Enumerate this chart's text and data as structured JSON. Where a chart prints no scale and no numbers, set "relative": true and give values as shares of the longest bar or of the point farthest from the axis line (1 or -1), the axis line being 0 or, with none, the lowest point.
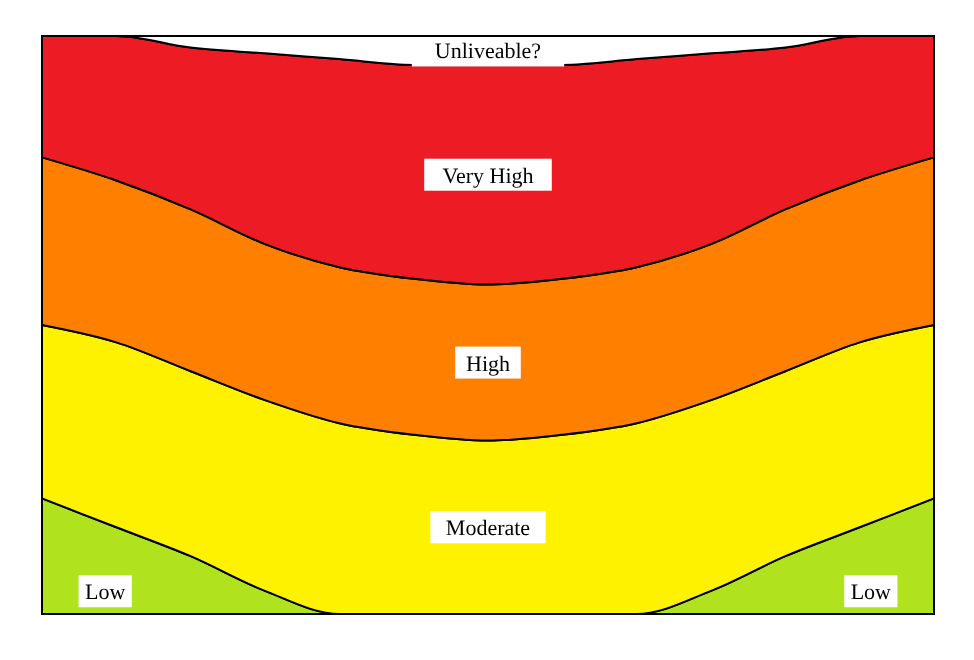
{
  "chart_data": {
    "type": "area",
    "stacked": true,
    "relative": true,
    "categories": [
      null,
      null,
      null,
      null,
      null,
      null,
      null,
      null,
      null,
      null,
      null,
      null,
      null
    ],
    "series": [
      {
        "name": "Low",
        "color": "#b0e31e",
        "values": [
          0.2,
          0.15,
          0.1,
          0.04,
          0,
          0,
          0,
          0,
          0,
          0.04,
          0.1,
          0.15,
          0.2
        ]
      },
      {
        "name": "Moderate",
        "color": "#fff200",
        "values": [
          0.3,
          0.32,
          0.32,
          0.33,
          0.33,
          0.31,
          0.3,
          0.31,
          0.33,
          0.33,
          0.32,
          0.32,
          0.3
        ]
      },
      {
        "name": "High",
        "color": "#ff7f00",
        "values": [
          0.29,
          0.28,
          0.28,
          0.27,
          0.27,
          0.27,
          0.27,
          0.27,
          0.27,
          0.27,
          0.28,
          0.28,
          0.29
        ]
      },
      {
        "name": "Very High",
        "color": "#ed1c24",
        "values": [
          0.21,
          0.25,
          0.28,
          0.33,
          0.36,
          0.37,
          0.38,
          0.37,
          0.36,
          0.33,
          0.28,
          0.25,
          0.21
        ]
      },
      {
        "name": "Unliveable?",
        "color": "#ffffff",
        "values": [
          0,
          0,
          0.02,
          0.03,
          0.04,
          0.05,
          0.05,
          0.05,
          0.04,
          0.03,
          0.02,
          0,
          0
        ]
      }
    ]
  }
}
